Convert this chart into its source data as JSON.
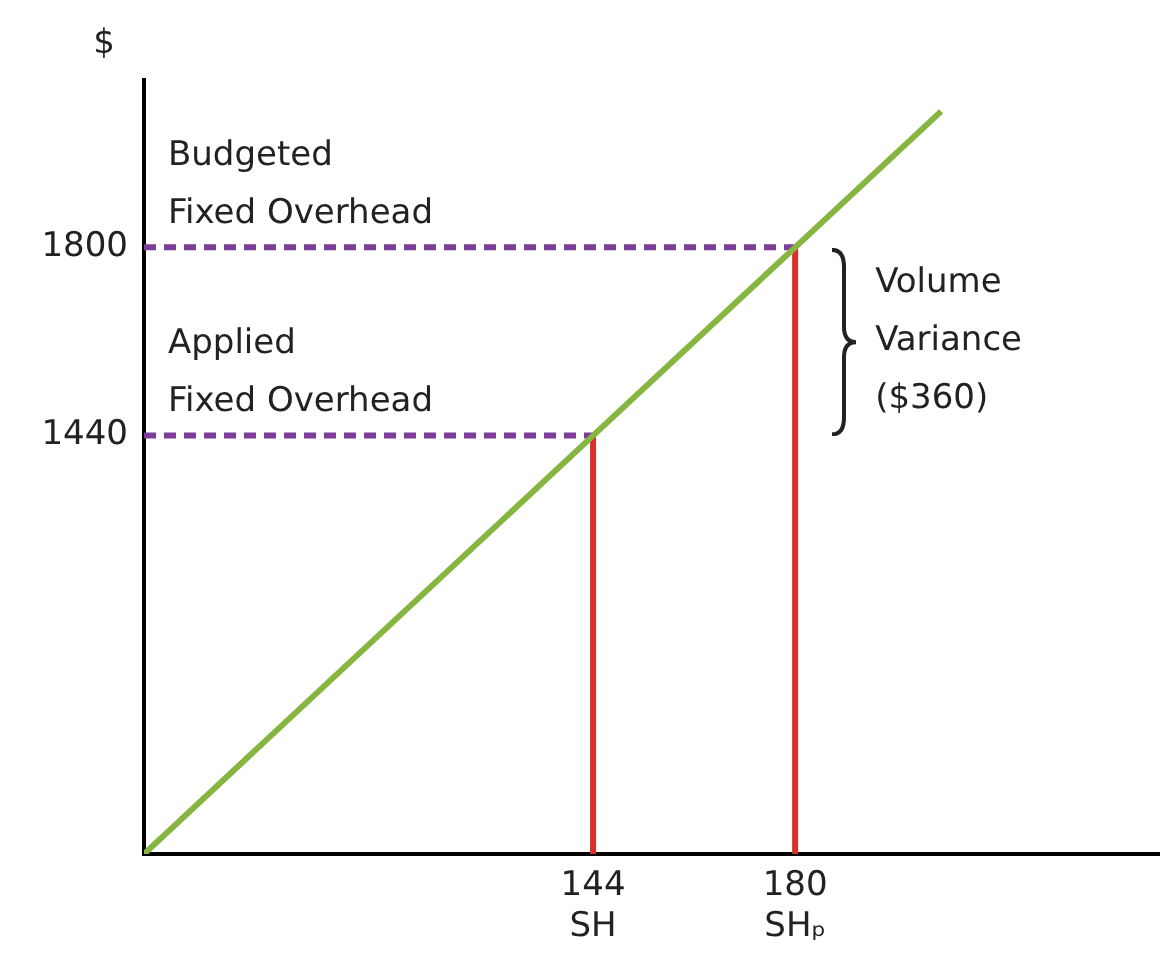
{
  "chart_data": {
    "type": "line",
    "ylabel": "$",
    "xlim": [
      64,
      245
    ],
    "ylim": [
      640,
      2120
    ],
    "xticks": [
      {
        "value": 144,
        "label": "144\nSH"
      },
      {
        "value": 180,
        "label": "180\nSHₚ"
      }
    ],
    "yticks": [
      1440,
      1800
    ],
    "grid": false,
    "legend": false,
    "marker": "none",
    "series": [
      {
        "color": "#86b540",
        "x": [
          64,
          144,
          180,
          206
        ],
        "values": [
          640,
          1440,
          1800,
          2060
        ],
        "line_style": "solid"
      },
      {
        "color": "#7d3c98",
        "x": [
          64,
          180
        ],
        "values": [
          1800,
          1800
        ],
        "line_style": "dashed"
      },
      {
        "color": "#7d3c98",
        "x": [
          64,
          144
        ],
        "values": [
          1440,
          1440
        ],
        "line_style": "dashed"
      },
      {
        "color": "#d9302a",
        "x": [
          144,
          144
        ],
        "values": [
          640,
          1440
        ],
        "line_style": "solid"
      },
      {
        "color": "#d9302a",
        "x": [
          180,
          180
        ],
        "values": [
          640,
          1800
        ],
        "line_style": "solid"
      }
    ],
    "annotations": [
      {
        "text": "Budgeted\nFixed Overhead",
        "y": 1800
      },
      {
        "text": "Applied\nFixed Overhead",
        "y": 1440
      },
      {
        "text": "Volume\nVariance\n($360)",
        "x": 180,
        "y": 1620
      }
    ]
  }
}
